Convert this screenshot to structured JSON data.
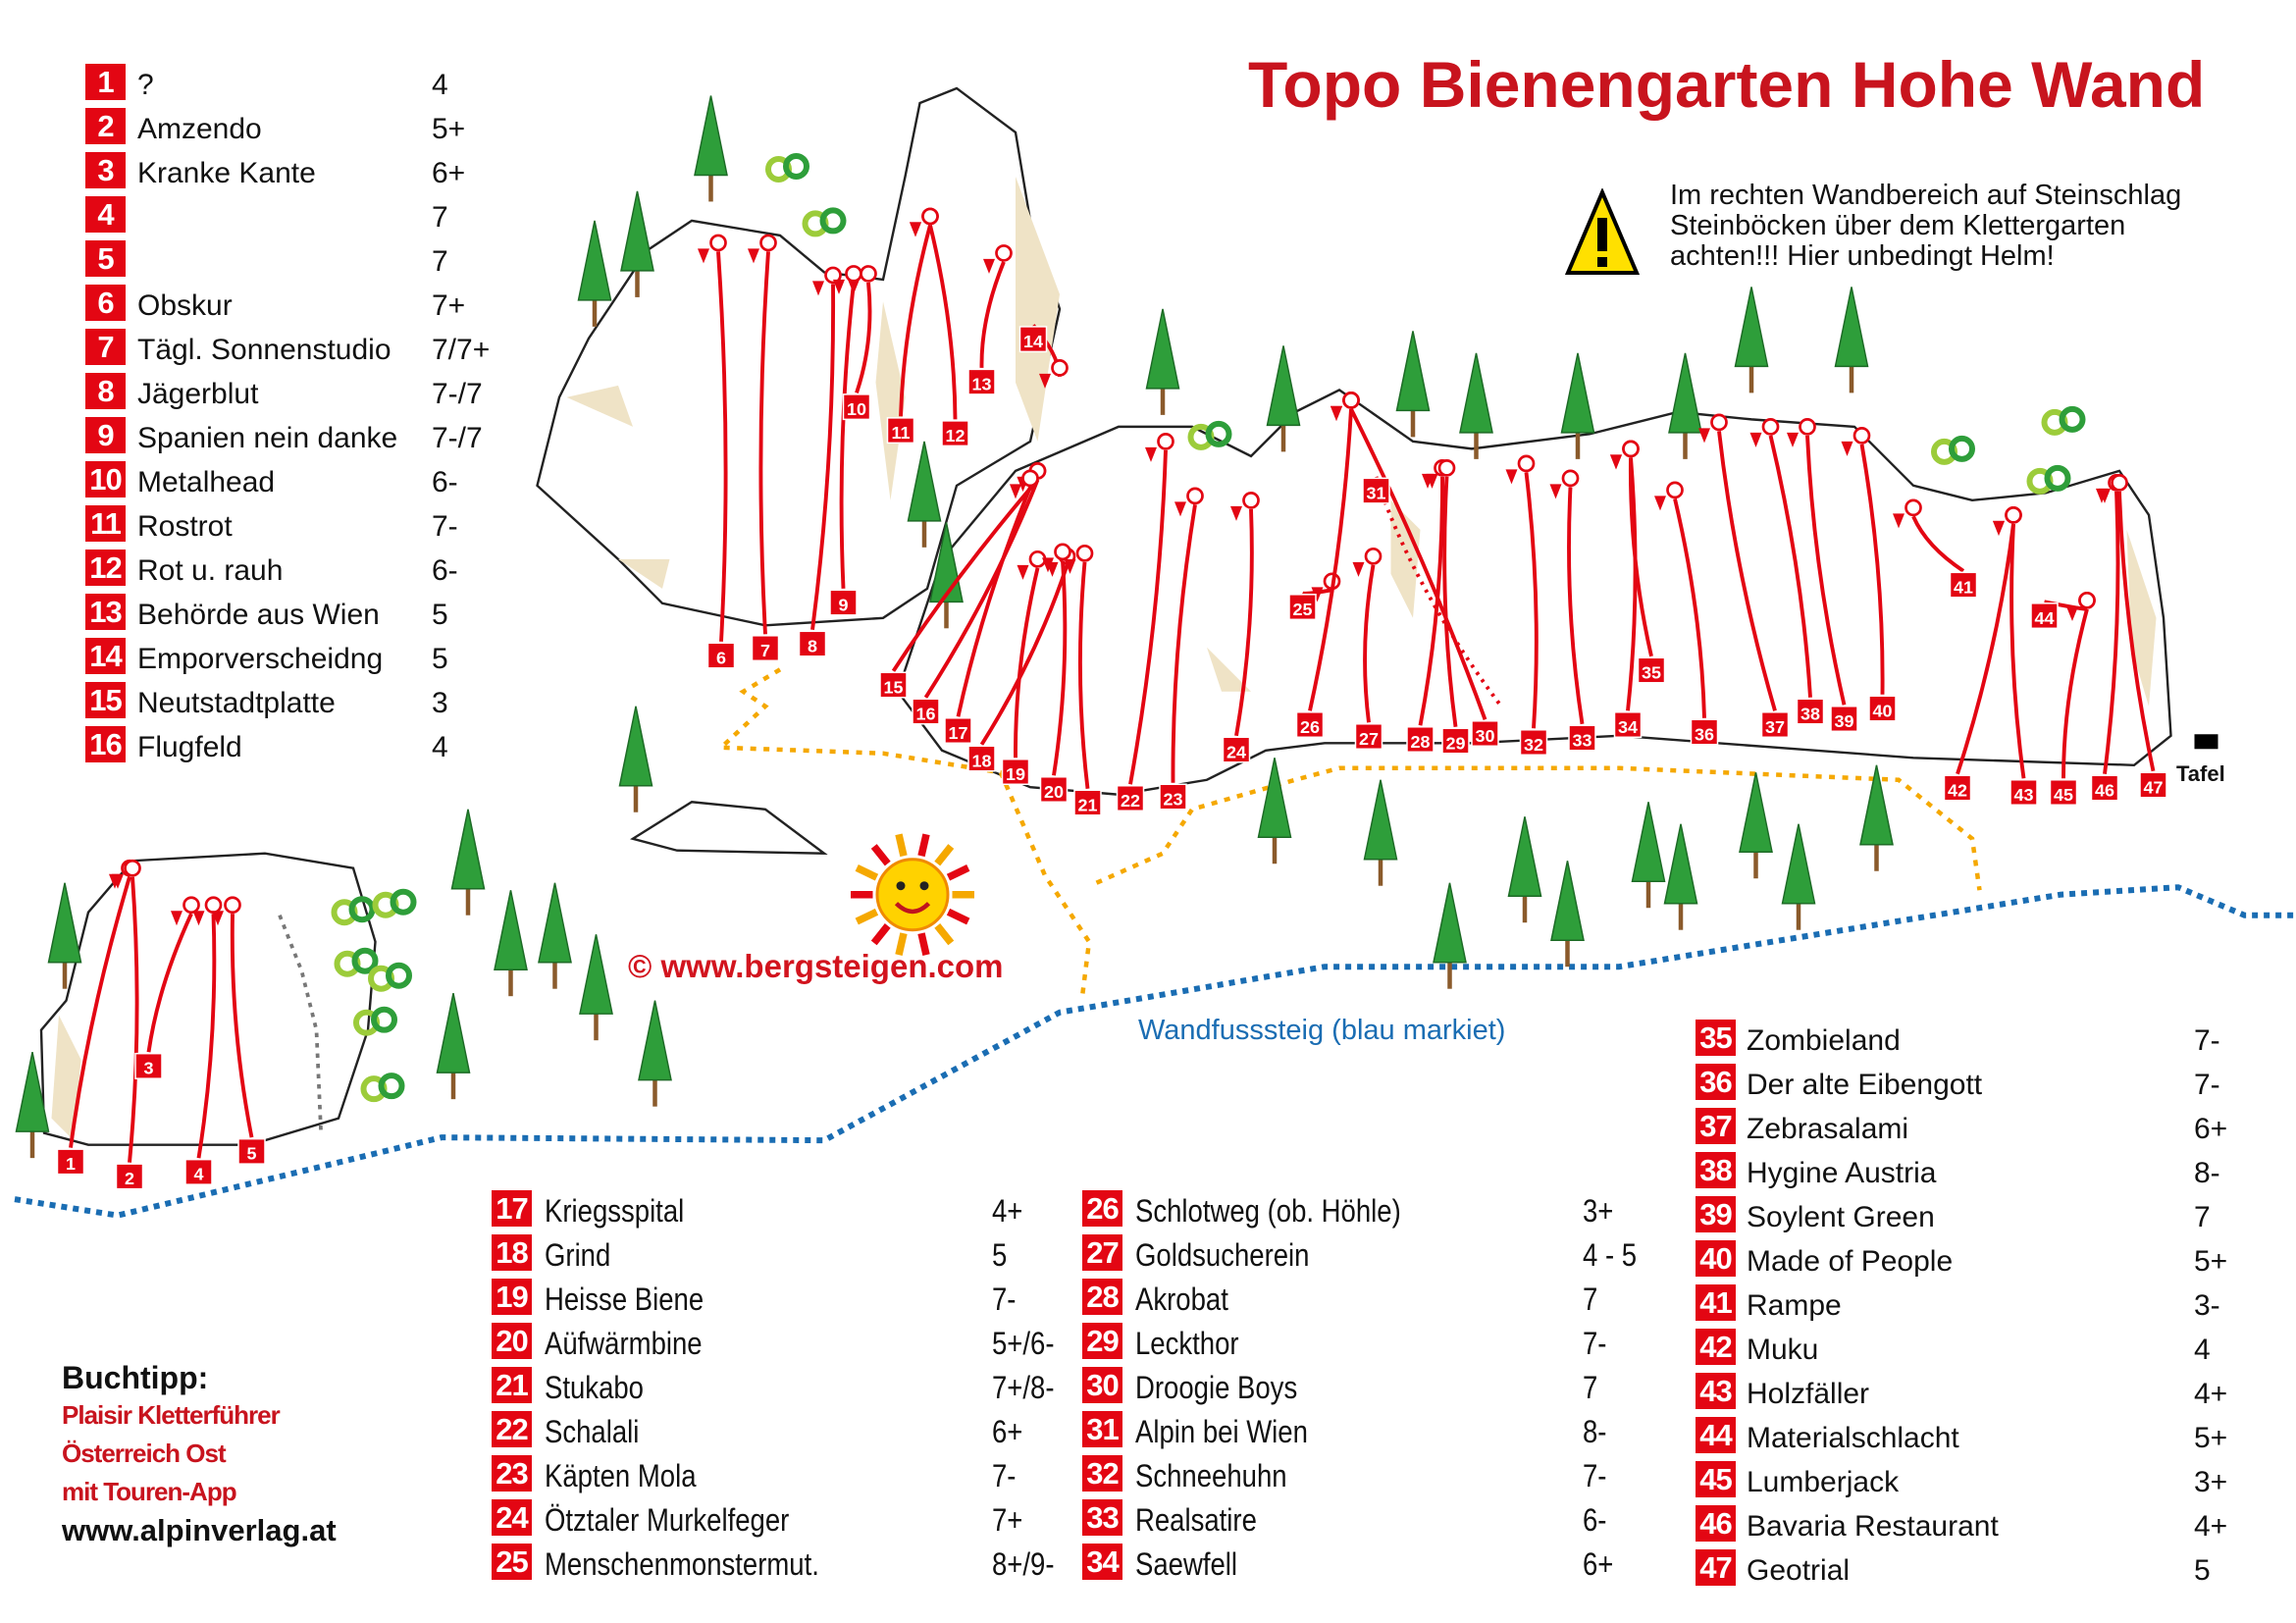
{
  "title": "Topo Bienengarten Hohe Wand",
  "warning": {
    "icon": "warning-triangle-icon",
    "lines": [
      "Im rechten Wandbereich auf Steinschlag",
      "Steinböcken über dem Klettergarten",
      "achten!!! Hier unbedingt Helm!"
    ]
  },
  "routes_a": [
    {
      "num": "1",
      "name": "?",
      "grade": "4"
    },
    {
      "num": "2",
      "name": "Amzendo",
      "grade": "5+"
    },
    {
      "num": "3",
      "name": "Kranke Kante",
      "grade": "6+"
    },
    {
      "num": "4",
      "name": "",
      "grade": "7"
    },
    {
      "num": "5",
      "name": "",
      "grade": "7"
    },
    {
      "num": "6",
      "name": "Obskur",
      "grade": "7+"
    },
    {
      "num": "7",
      "name": "Tägl. Sonnenstudio",
      "grade": "7/7+"
    },
    {
      "num": "8",
      "name": "Jägerblut",
      "grade": "7-/7"
    },
    {
      "num": "9",
      "name": "Spanien nein danke",
      "grade": "7-/7"
    },
    {
      "num": "10",
      "name": "Metalhead",
      "grade": "6-"
    },
    {
      "num": "11",
      "name": "Rostrot",
      "grade": "7-"
    },
    {
      "num": "12",
      "name": "Rot u. rauh",
      "grade": "6-"
    },
    {
      "num": "13",
      "name": "Behörde aus Wien",
      "grade": "5"
    },
    {
      "num": "14",
      "name": "Emporverscheidng",
      "grade": "5"
    },
    {
      "num": "15",
      "name": "Neutstadtplatte",
      "grade": "3"
    },
    {
      "num": "16",
      "name": "Flugfeld",
      "grade": "4"
    }
  ],
  "routes_b": [
    {
      "num": "17",
      "name": "Kriegsspital",
      "grade": "4+"
    },
    {
      "num": "18",
      "name": "Grind",
      "grade": "5"
    },
    {
      "num": "19",
      "name": "Heisse Biene",
      "grade": "7-"
    },
    {
      "num": "20",
      "name": "Aüfwärmbine",
      "grade": "5+/6-"
    },
    {
      "num": "21",
      "name": "Stukabo",
      "grade": "7+/8-"
    },
    {
      "num": "22",
      "name": "Schalali",
      "grade": "6+"
    },
    {
      "num": "23",
      "name": "Käpten Mola",
      "grade": "7-"
    },
    {
      "num": "24",
      "name": "Ötztaler Murkelfeger",
      "grade": "7+"
    },
    {
      "num": "25",
      "name": "Menschenmonstermut.",
      "grade": "8+/9-"
    }
  ],
  "routes_c": [
    {
      "num": "26",
      "name": "Schlotweg (ob. Höhle)",
      "grade": "3+"
    },
    {
      "num": "27",
      "name": "Goldsucherein",
      "grade": "4 - 5"
    },
    {
      "num": "28",
      "name": "Akrobat",
      "grade": "7"
    },
    {
      "num": "29",
      "name": "Leckthor",
      "grade": "7-"
    },
    {
      "num": "30",
      "name": "Droogie Boys",
      "grade": "7"
    },
    {
      "num": "31",
      "name": "Alpin bei Wien",
      "grade": "8-"
    },
    {
      "num": "32",
      "name": "Schneehuhn",
      "grade": "7-"
    },
    {
      "num": "33",
      "name": "Realsatire",
      "grade": "6-"
    },
    {
      "num": "34",
      "name": "Saewfell",
      "grade": "6+"
    }
  ],
  "routes_d": [
    {
      "num": "35",
      "name": "Zombieland",
      "grade": "7-"
    },
    {
      "num": "36",
      "name": "Der alte Eibengott",
      "grade": "7-"
    },
    {
      "num": "37",
      "name": "Zebrasalami",
      "grade": "6+"
    },
    {
      "num": "38",
      "name": "Hygine Austria",
      "grade": "8-"
    },
    {
      "num": "39",
      "name": "Soylent Green",
      "grade": "7"
    },
    {
      "num": "40",
      "name": "Made of People",
      "grade": "5+"
    },
    {
      "num": "41",
      "name": "Rampe",
      "grade": "3-"
    },
    {
      "num": "42",
      "name": "Muku",
      "grade": "4"
    },
    {
      "num": "43",
      "name": "Holzfäller",
      "grade": "4+"
    },
    {
      "num": "44",
      "name": "Materialschlacht",
      "grade": "5+"
    },
    {
      "num": "45",
      "name": "Lumberjack",
      "grade": "3+"
    },
    {
      "num": "46",
      "name": "Bavaria Restaurant",
      "grade": "4+"
    },
    {
      "num": "47",
      "name": "Geotrial",
      "grade": "5"
    }
  ],
  "buchtipp": {
    "heading": "Buchtipp:",
    "lines": [
      "Plaisir Kletterführer",
      "Österreich Ost",
      "mit Touren-App"
    ],
    "url": "www.alpinverlag.at"
  },
  "copyright": "©  www.bergsteigen.com",
  "trail_label": "Wandfusssteig (blau markiet)",
  "tafel_label": "Tafel",
  "colors": {
    "route": "#e30613",
    "title": "#c8141e",
    "trail": "#1a6db3",
    "approach_path": "#f5a800",
    "tree": "#2e9e3a",
    "warning": "#ffe000"
  }
}
